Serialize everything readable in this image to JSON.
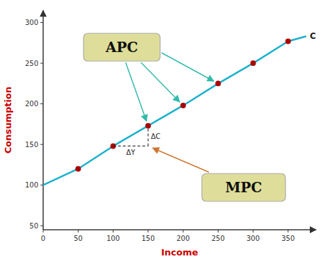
{
  "chart_data": {
    "type": "line",
    "xlabel": "Income",
    "ylabel": "Consumption",
    "series": [
      {
        "type": "line",
        "color": "#1ab0cc",
        "x": [
          0,
          50,
          100,
          150,
          200,
          250,
          300,
          350,
          375
        ],
        "values": [
          100,
          120,
          148,
          173,
          198,
          225,
          250,
          277,
          283
        ]
      },
      {
        "type": "scatter",
        "color": "#aa0000",
        "x": [
          50,
          100,
          150,
          200,
          250,
          300,
          350
        ],
        "values": [
          120,
          148,
          173,
          198,
          225,
          250,
          277
        ]
      }
    ],
    "xlim": [
      0,
      390
    ],
    "ylim": [
      45,
      315
    ],
    "xticks": [
      0,
      50,
      100,
      150,
      200,
      250,
      300,
      350
    ],
    "yticks": [
      50,
      100,
      150,
      200,
      250,
      300
    ],
    "grid": false,
    "annotations": [
      {
        "text": "C"
      },
      {
        "text": "APC"
      },
      {
        "text": "MPC"
      },
      {
        "text": "ΔC"
      },
      {
        "text": "ΔY"
      }
    ]
  }
}
